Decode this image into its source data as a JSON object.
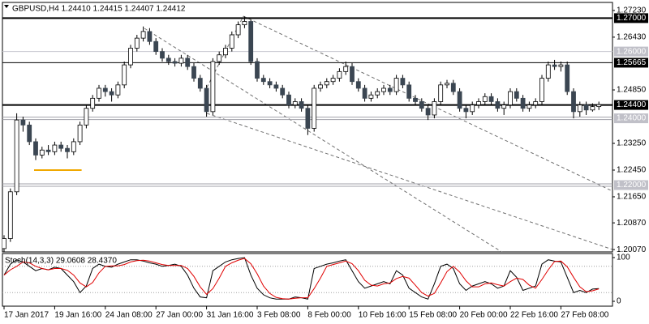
{
  "chart_data": {
    "type": "candlestick",
    "title": "GBPUSD,H4  1.24410 1.24415 1.24407 1.24412",
    "categories": [
      "17 Jan 2017",
      null,
      null,
      null,
      null,
      null,
      null,
      null,
      "19 Jan 16:00",
      null,
      null,
      null,
      null,
      null,
      null,
      null,
      "24 Jan 08:00",
      null,
      null,
      null,
      null,
      null,
      null,
      null,
      "27 Jan 00:00",
      null,
      null,
      null,
      null,
      null,
      null,
      null,
      "31 Jan 16:00",
      null,
      null,
      null,
      null,
      null,
      null,
      null,
      "3 Feb 08:00",
      null,
      null,
      null,
      null,
      null,
      null,
      null,
      "8 Feb 00:00",
      null,
      null,
      null,
      null,
      null,
      null,
      null,
      "10 Feb 16:00",
      null,
      null,
      null,
      null,
      null,
      null,
      null,
      "15 Feb 08:00",
      null,
      null,
      null,
      null,
      null,
      null,
      null,
      "20 Feb 00:00",
      null,
      null,
      null,
      null,
      null,
      null,
      null,
      "22 Feb 16:00",
      null,
      null,
      null,
      null,
      null,
      null,
      null,
      "27 Feb 08:00",
      null,
      null,
      null,
      null,
      null,
      null
    ],
    "open": [
      1.201,
      1.204,
      1.218,
      1.2395,
      1.238,
      1.233,
      1.229,
      1.2305,
      1.23,
      1.232,
      1.231,
      1.23,
      1.233,
      1.238,
      1.243,
      1.246,
      1.249,
      1.248,
      1.247,
      1.25,
      1.256,
      1.261,
      1.264,
      1.266,
      1.263,
      1.26,
      1.258,
      1.257,
      1.2565,
      1.258,
      1.2555,
      1.252,
      1.249,
      1.242,
      1.257,
      1.259,
      1.261,
      1.265,
      1.268,
      1.269,
      1.257,
      1.252,
      1.251,
      1.25,
      1.249,
      1.247,
      1.244,
      1.245,
      1.243,
      1.237,
      1.249,
      1.25,
      1.251,
      1.252,
      1.254,
      1.2555,
      1.251,
      1.249,
      1.246,
      1.247,
      1.248,
      1.249,
      1.248,
      1.252,
      1.25,
      1.246,
      1.245,
      1.243,
      1.241,
      1.245,
      1.25,
      1.2505,
      1.248,
      1.243,
      1.242,
      1.244,
      1.245,
      1.2465,
      1.245,
      1.243,
      1.244,
      1.248,
      1.246,
      1.243,
      1.244,
      1.245,
      1.252,
      1.256,
      1.2555,
      1.256,
      1.248,
      1.242,
      1.244,
      1.2425,
      1.2435
    ],
    "high": [
      1.205,
      1.219,
      1.2415,
      1.2405,
      1.239,
      1.234,
      1.2315,
      1.232,
      1.233,
      1.233,
      1.232,
      1.234,
      1.239,
      1.244,
      1.247,
      1.25,
      1.25,
      1.249,
      1.251,
      1.257,
      1.262,
      1.265,
      1.2675,
      1.267,
      1.264,
      1.261,
      1.259,
      1.258,
      1.259,
      1.259,
      1.2565,
      1.253,
      1.25,
      1.258,
      1.26,
      1.262,
      1.266,
      1.269,
      1.2705,
      1.2695,
      1.258,
      1.253,
      1.252,
      1.251,
      1.25,
      1.248,
      1.246,
      1.246,
      1.244,
      1.25,
      1.251,
      1.252,
      1.253,
      1.255,
      1.257,
      1.2565,
      1.252,
      1.25,
      1.248,
      1.249,
      1.25,
      1.25,
      1.253,
      1.253,
      1.251,
      1.247,
      1.246,
      1.244,
      1.246,
      1.251,
      1.2515,
      1.2515,
      1.249,
      1.244,
      1.245,
      1.246,
      1.2475,
      1.2475,
      1.246,
      1.245,
      1.249,
      1.249,
      1.247,
      1.245,
      1.246,
      1.253,
      1.257,
      1.2575,
      1.257,
      1.257,
      1.249,
      1.245,
      1.245,
      1.2445,
      1.245
    ],
    "low": [
      1.2,
      1.203,
      1.217,
      1.236,
      1.232,
      1.2275,
      1.228,
      1.229,
      1.229,
      1.23,
      1.228,
      1.229,
      1.232,
      1.237,
      1.242,
      1.245,
      1.2465,
      1.245,
      1.246,
      1.249,
      1.255,
      1.26,
      1.263,
      1.262,
      1.259,
      1.257,
      1.256,
      1.2555,
      1.2555,
      1.2545,
      1.251,
      1.248,
      1.2405,
      1.241,
      1.256,
      1.258,
      1.26,
      1.264,
      1.267,
      1.256,
      1.251,
      1.25,
      1.249,
      1.248,
      1.246,
      1.243,
      1.243,
      1.242,
      1.235,
      1.236,
      1.248,
      1.249,
      1.25,
      1.251,
      1.253,
      1.25,
      1.248,
      1.245,
      1.245,
      1.246,
      1.247,
      1.247,
      1.247,
      1.249,
      1.245,
      1.244,
      1.242,
      1.2395,
      1.24,
      1.244,
      1.249,
      1.247,
      1.242,
      1.24,
      1.241,
      1.243,
      1.244,
      1.244,
      1.242,
      1.241,
      1.243,
      1.245,
      1.242,
      1.242,
      1.243,
      1.244,
      1.251,
      1.2545,
      1.254,
      1.247,
      1.24,
      1.2405,
      1.241,
      1.242,
      1.2425
    ],
    "close": [
      1.204,
      1.218,
      1.2395,
      1.238,
      1.233,
      1.229,
      1.2305,
      1.23,
      1.232,
      1.231,
      1.23,
      1.233,
      1.238,
      1.243,
      1.246,
      1.249,
      1.248,
      1.247,
      1.25,
      1.256,
      1.261,
      1.264,
      1.266,
      1.263,
      1.26,
      1.258,
      1.257,
      1.2565,
      1.258,
      1.2555,
      1.252,
      1.249,
      1.242,
      1.257,
      1.259,
      1.261,
      1.265,
      1.268,
      1.269,
      1.257,
      1.252,
      1.251,
      1.25,
      1.249,
      1.247,
      1.244,
      1.245,
      1.243,
      1.237,
      1.249,
      1.25,
      1.251,
      1.252,
      1.254,
      1.2555,
      1.251,
      1.249,
      1.246,
      1.247,
      1.248,
      1.249,
      1.248,
      1.252,
      1.25,
      1.246,
      1.245,
      1.243,
      1.241,
      1.245,
      1.25,
      1.2505,
      1.248,
      1.243,
      1.242,
      1.244,
      1.245,
      1.2465,
      1.245,
      1.243,
      1.244,
      1.248,
      1.246,
      1.243,
      1.244,
      1.245,
      1.252,
      1.256,
      1.2555,
      1.256,
      1.248,
      1.242,
      1.244,
      1.2425,
      1.2435,
      1.2441
    ],
    "up_color": "#ffffff",
    "down_color": "#3b4652",
    "ylim": [
      1.2,
      1.2747
    ],
    "yticks": [
      {
        "value": 1.2723,
        "label": "1.27230"
      },
      {
        "value": 1.2643,
        "label": "1.26430"
      },
      {
        "value": 1.2485,
        "label": "1.24850"
      },
      {
        "value": 1.2325,
        "label": "1.23250"
      },
      {
        "value": 1.2245,
        "label": "1.22450"
      },
      {
        "value": 1.2165,
        "label": "1.21650"
      },
      {
        "value": 1.2087,
        "label": "1.20870"
      },
      {
        "value": 1.2007,
        "label": "1.20070"
      }
    ],
    "hlines": [
      {
        "value": 1.27,
        "label": "1.27000",
        "color": "#000000",
        "width": 2
      },
      {
        "value": 1.26,
        "label": "1.26000",
        "color": "#c8c8d0",
        "width": 1
      },
      {
        "value": 1.25665,
        "label": "1.25665",
        "color": "#000000",
        "width": 1
      },
      {
        "value": 1.244,
        "label": "1.24400",
        "color": "#000000",
        "width": 2
      },
      {
        "value": 1.24,
        "label": "1.24000",
        "color": "#a0a0a8",
        "width": 3
      },
      {
        "value": 1.22,
        "label": "1.22000",
        "color": "#a0a0a8",
        "width": 3
      }
    ],
    "support": {
      "value": 1.2245,
      "color": "#f0a800"
    },
    "indicator": {
      "type": "line",
      "title": "Stoch(14,3,3) 29.0608 28.4370",
      "ylim": [
        0,
        100
      ],
      "yticks": [
        100,
        0
      ],
      "levels": [
        80,
        20
      ],
      "series": [
        {
          "color": "#000000",
          "values": [
            60,
            85,
            95,
            90,
            80,
            70,
            75,
            72,
            78,
            75,
            60,
            45,
            20,
            35,
            75,
            85,
            80,
            78,
            85,
            90,
            95,
            95,
            92,
            88,
            85,
            80,
            82,
            85,
            80,
            60,
            30,
            10,
            8,
            70,
            80,
            90,
            95,
            98,
            100,
            60,
            30,
            15,
            8,
            5,
            5,
            5,
            10,
            8,
            5,
            75,
            80,
            85,
            88,
            92,
            95,
            70,
            45,
            30,
            35,
            40,
            45,
            40,
            70,
            60,
            30,
            20,
            10,
            5,
            40,
            80,
            85,
            75,
            40,
            25,
            35,
            40,
            45,
            40,
            30,
            35,
            70,
            55,
            25,
            30,
            35,
            85,
            95,
            92,
            90,
            55,
            20,
            25,
            20,
            28,
            29.0608
          ]
        },
        {
          "color": "#e00000",
          "values": [
            60,
            72,
            80,
            90,
            88,
            80,
            75,
            72,
            75,
            75,
            71,
            60,
            42,
            33,
            43,
            65,
            80,
            81,
            81,
            84,
            90,
            93,
            94,
            92,
            88,
            84,
            82,
            82,
            82,
            75,
            57,
            33,
            16,
            29,
            53,
            80,
            88,
            94,
            98,
            86,
            63,
            35,
            18,
            9,
            6,
            5,
            7,
            8,
            8,
            29,
            53,
            80,
            84,
            88,
            92,
            86,
            70,
            48,
            37,
            35,
            40,
            42,
            52,
            57,
            53,
            37,
            20,
            12,
            18,
            42,
            68,
            80,
            67,
            47,
            33,
            33,
            40,
            42,
            38,
            35,
            45,
            53,
            50,
            37,
            30,
            50,
            72,
            91,
            92,
            79,
            55,
            33,
            22,
            24,
            28.437
          ]
        }
      ]
    }
  }
}
